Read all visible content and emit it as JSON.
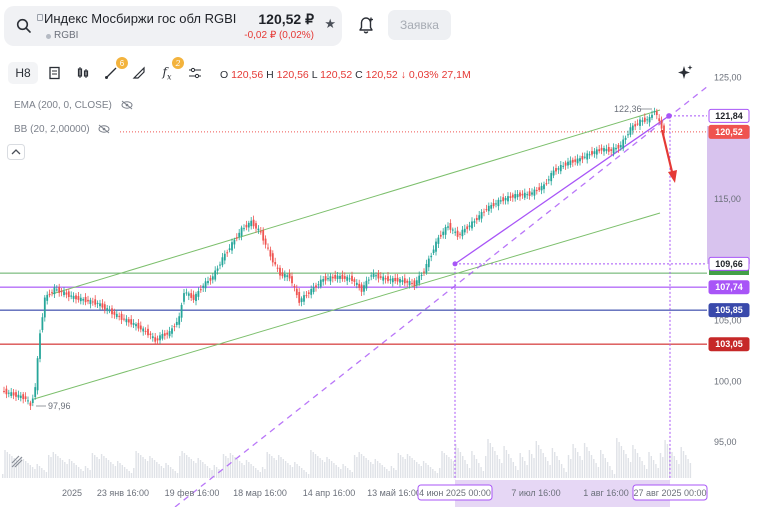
{
  "header": {
    "instrument_title": "Индекс Мосбиржи гос обл RGBI",
    "ticker": "RGBI",
    "price": "120,52 ₽",
    "change": "-0,02 ₽ (0,02%)",
    "order_button": "Заявка",
    "icons": [
      "search-icon",
      "lock-icon",
      "star-icon",
      "bell-plus-icon"
    ]
  },
  "toolbar": {
    "interval": "H8",
    "drawing_badge": "6",
    "indicators_badge": "2",
    "ohlc": {
      "o_label": "O",
      "o": "120,56",
      "h_label": "H",
      "h": "120,56",
      "l_label": "L",
      "l": "120,52",
      "c_label": "C",
      "c": "120,52",
      "change": "↓ 0,03%",
      "volume": "27,1M"
    },
    "icons": [
      "interval",
      "chart-type-icon",
      "candles-icon",
      "drawing-tools-icon",
      "ruler-icon",
      "fx-icon",
      "settings-sliders-icon",
      "sparkle-icon"
    ]
  },
  "indicators": [
    {
      "label": "EMA (200, 0, CLOSE)"
    },
    {
      "label": "BB (20, 2,00000)"
    }
  ],
  "colors": {
    "up": "#26a69a",
    "down": "#ef5350",
    "channel": "#7cbf6c",
    "purple": "#a855f7",
    "blue_level": "#3949ab",
    "red_level": "#d32f2f",
    "green_level": "#43a047"
  },
  "chart_data": {
    "type": "candlestick",
    "y_ticks": [
      "125,00",
      "115,00",
      "105,00",
      "100,00",
      "95,00"
    ],
    "x_ticks": [
      "2025",
      "23 янв 16:00",
      "19 фев 16:00",
      "18 мар 16:00",
      "14 апр 16:00",
      "13 май 16:00",
      "7 июл 16:00",
      "1 авг 16:00"
    ],
    "x_highlight_labels": [
      "4 июн 2025 00:00",
      "27 авг 2025 00:00"
    ],
    "price_tags": [
      {
        "value": "121,84",
        "kind": "outline"
      },
      {
        "value": "120,52",
        "kind": "current"
      },
      {
        "value": "109,66",
        "kind": "outline"
      },
      {
        "value": "107,74",
        "kind": "purple"
      },
      {
        "value": "105,85",
        "kind": "blue"
      },
      {
        "value": "103,05",
        "kind": "red"
      }
    ],
    "annotations": [
      "122,36",
      "97,96"
    ],
    "horizontal_levels": [
      108.9,
      107.74,
      105.85,
      103.05
    ],
    "price_points": [
      [
        0,
        99.2
      ],
      [
        10,
        98.6
      ],
      [
        12,
        97.96
      ],
      [
        14,
        99.5
      ],
      [
        16,
        104
      ],
      [
        18,
        106.8
      ],
      [
        22,
        107.6
      ],
      [
        30,
        106.9
      ],
      [
        40,
        106.4
      ],
      [
        48,
        105.4
      ],
      [
        56,
        104.6
      ],
      [
        62,
        103.8
      ],
      [
        64,
        103.3
      ],
      [
        66,
        103.7
      ],
      [
        70,
        104.0
      ],
      [
        74,
        105.2
      ],
      [
        76,
        107.4
      ],
      [
        80,
        106.8
      ],
      [
        84,
        107.9
      ],
      [
        88,
        108.6
      ],
      [
        92,
        110.1
      ],
      [
        96,
        111.3
      ],
      [
        100,
        112.5
      ],
      [
        104,
        113.1
      ],
      [
        108,
        112.2
      ],
      [
        112,
        110.3
      ],
      [
        116,
        108.8
      ],
      [
        120,
        108.6
      ],
      [
        124,
        106.6
      ],
      [
        128,
        107.3
      ],
      [
        134,
        108.4
      ],
      [
        140,
        108.6
      ],
      [
        146,
        108.4
      ],
      [
        150,
        107.5
      ],
      [
        154,
        108.8
      ],
      [
        160,
        108.4
      ],
      [
        166,
        108.3
      ],
      [
        172,
        108.0
      ],
      [
        176,
        109.1
      ],
      [
        182,
        111.8
      ],
      [
        186,
        112.8
      ],
      [
        190,
        112.0
      ],
      [
        196,
        113.0
      ],
      [
        202,
        114.2
      ],
      [
        208,
        114.9
      ],
      [
        214,
        115.3
      ],
      [
        220,
        115.4
      ],
      [
        226,
        116.1
      ],
      [
        230,
        117.3
      ],
      [
        236,
        118.0
      ],
      [
        240,
        118.2
      ],
      [
        246,
        118.8
      ],
      [
        250,
        119.1
      ],
      [
        254,
        119.0
      ],
      [
        258,
        119.4
      ],
      [
        262,
        120.8
      ],
      [
        266,
        121.4
      ],
      [
        270,
        121.6
      ],
      [
        272,
        122.36
      ],
      [
        274,
        121.3
      ],
      [
        276,
        120.52
      ]
    ]
  }
}
